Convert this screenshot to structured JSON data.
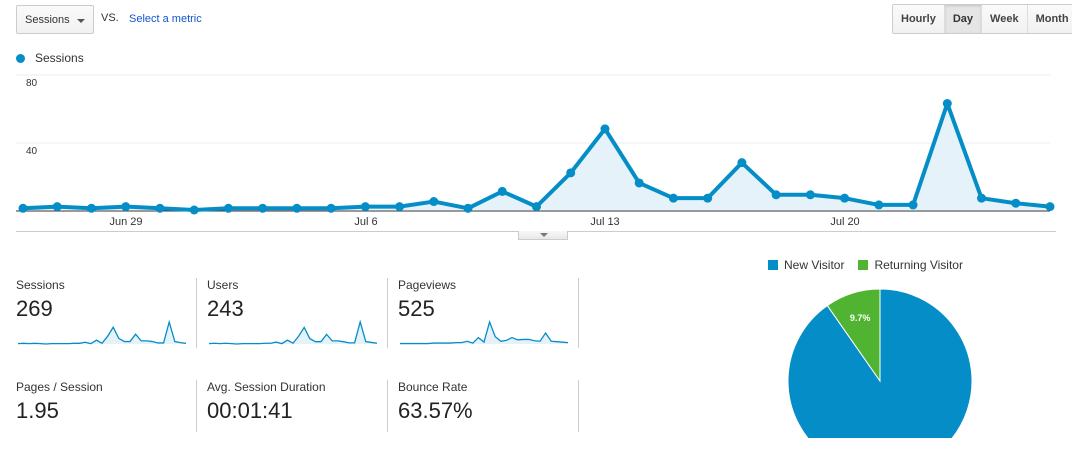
{
  "toolbar": {
    "metric_select": "Sessions",
    "vs_label": "VS.",
    "select_metric_link": "Select a metric",
    "granularity": [
      {
        "label": "Hourly",
        "active": false
      },
      {
        "label": "Day",
        "active": true
      },
      {
        "label": "Week",
        "active": false
      },
      {
        "label": "Month",
        "active": false
      }
    ]
  },
  "legend": {
    "series": "Sessions",
    "color": "#058dc7"
  },
  "colors": {
    "series": "#058dc7",
    "fill": "#e5f2f9",
    "grid": "#eeeeee",
    "returning": "#50b432"
  },
  "chart_data": [
    {
      "type": "area",
      "title": "",
      "series": [
        {
          "name": "Sessions",
          "values": [
            1,
            2,
            1,
            2,
            1,
            0,
            1,
            1,
            1,
            1,
            2,
            2,
            5,
            1,
            11,
            2,
            22,
            48,
            16,
            7,
            7,
            28,
            9,
            9,
            7,
            3,
            3,
            63,
            7,
            4,
            2
          ]
        }
      ],
      "x": [
        "Jun 26",
        "Jun 27",
        "Jun 28",
        "Jun 29",
        "Jun 30",
        "Jul 1",
        "Jul 2",
        "Jul 3",
        "Jul 4",
        "Jul 5",
        "Jul 6",
        "Jul 7",
        "Jul 8",
        "Jul 9",
        "Jul 10",
        "Jul 11",
        "Jul 12",
        "Jul 13",
        "Jul 14",
        "Jul 15",
        "Jul 16",
        "Jul 17",
        "Jul 18",
        "Jul 19",
        "Jul 20",
        "Jul 21",
        "Jul 22",
        "Jul 23",
        "Jul 24",
        "Jul 25",
        "Jul 26"
      ],
      "xtick_labels": [
        "Jun 29",
        "Jul 6",
        "Jul 13",
        "Jul 20"
      ],
      "ytick_labels": [
        "40",
        "80"
      ],
      "ylim": [
        0,
        80
      ],
      "grid": true,
      "legend_position": "top-left"
    },
    {
      "type": "pie",
      "title": "",
      "categories": [
        "New Visitor",
        "Returning Visitor"
      ],
      "values": [
        90.3,
        9.7
      ],
      "colors": [
        "#058dc7",
        "#50b432"
      ],
      "data_labels": [
        "",
        "9.7%"
      ],
      "legend_position": "top"
    }
  ],
  "yaxis": {
    "t80": "80",
    "t40": "40"
  },
  "xaxis": {
    "t1": "Jun 29",
    "t2": "Jul 6",
    "t3": "Jul 13",
    "t4": "Jul 20"
  },
  "tiles": [
    {
      "label": "Sessions",
      "value": "269"
    },
    {
      "label": "Users",
      "value": "243"
    },
    {
      "label": "Pageviews",
      "value": "525"
    },
    {
      "label": "Pages / Session",
      "value": "1.95"
    },
    {
      "label": "Avg. Session Duration",
      "value": "00:01:41"
    },
    {
      "label": "Bounce Rate",
      "value": "63.57%"
    }
  ],
  "pie": {
    "legend": [
      {
        "label": "New Visitor",
        "color": "#058dc7"
      },
      {
        "label": "Returning Visitor",
        "color": "#50b432"
      }
    ],
    "slice_label": "9.7%"
  }
}
